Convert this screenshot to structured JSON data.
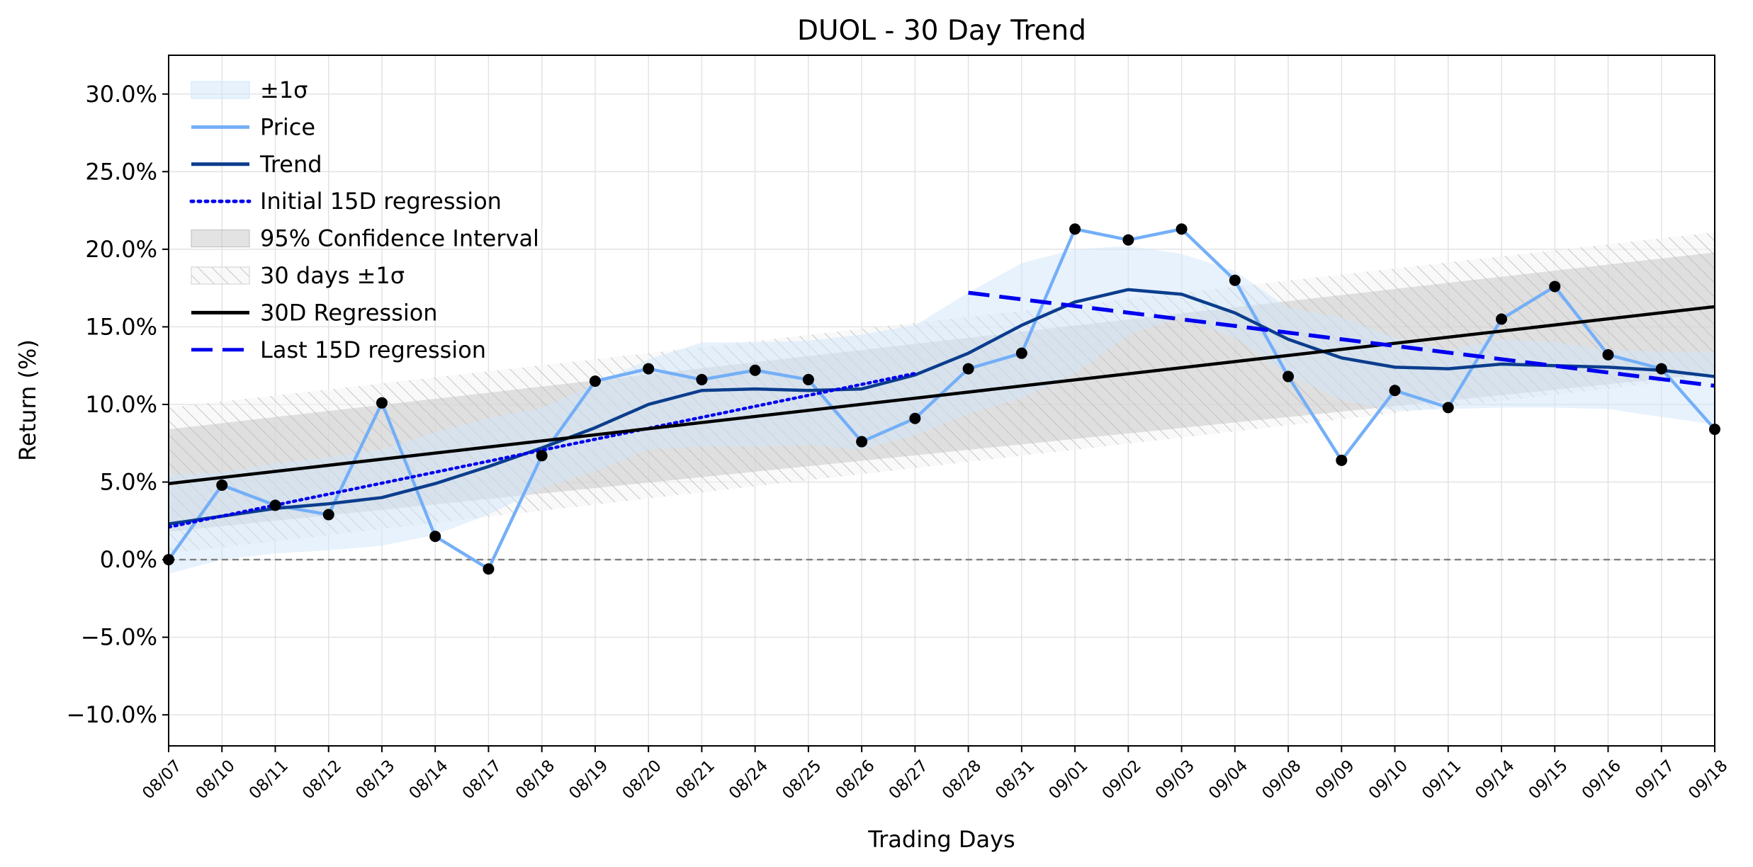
{
  "chart_data": {
    "type": "line",
    "title": "DUOL - 30 Day Trend",
    "xlabel": "Trading Days",
    "ylabel": "Return (%)",
    "ylim": [
      -12.0,
      32.5
    ],
    "yticks": [
      -10,
      -5,
      0,
      5,
      10,
      15,
      20,
      25,
      30
    ],
    "ytick_labels": [
      "−10.0%",
      "−5.0%",
      "0.0%",
      "5.0%",
      "10.0%",
      "15.0%",
      "20.0%",
      "25.0%",
      "30.0%"
    ],
    "categories": [
      "08/07",
      "08/10",
      "08/11",
      "08/12",
      "08/13",
      "08/14",
      "08/17",
      "08/18",
      "08/19",
      "08/20",
      "08/21",
      "08/24",
      "08/25",
      "08/26",
      "08/27",
      "08/28",
      "08/31",
      "09/01",
      "09/02",
      "09/03",
      "09/04",
      "09/08",
      "09/09",
      "09/10",
      "09/11",
      "09/14",
      "09/15",
      "09/16",
      "09/17",
      "09/18"
    ],
    "grid": true,
    "legend_position": "top-left",
    "zero_line": 0,
    "series": [
      {
        "name": "Price",
        "color": "#74aff7",
        "style": "solid",
        "markers": true,
        "values": [
          0.0,
          4.8,
          3.5,
          2.9,
          10.1,
          1.5,
          -0.6,
          6.7,
          11.5,
          12.3,
          11.6,
          12.2,
          11.6,
          7.6,
          9.1,
          12.3,
          13.3,
          21.3,
          20.6,
          21.3,
          18.0,
          11.8,
          6.4,
          10.9,
          9.8,
          15.5,
          17.6,
          13.2,
          12.3,
          8.4
        ]
      },
      {
        "name": "Trend",
        "color": "#0b3d8c",
        "style": "solid",
        "values": [
          2.3,
          2.8,
          3.3,
          3.6,
          4.0,
          4.9,
          6.0,
          7.2,
          8.5,
          10.0,
          10.9,
          11.0,
          10.9,
          11.0,
          11.9,
          13.3,
          15.1,
          16.6,
          17.4,
          17.1,
          15.9,
          14.2,
          13.0,
          12.4,
          12.3,
          12.6,
          12.5,
          12.4,
          12.2,
          11.8
        ]
      },
      {
        "name": "Initial 15D regression",
        "color": "#0000ee",
        "style": "dotted",
        "x_range": [
          0,
          14
        ],
        "y_start": 2.1,
        "y_end": 12.0
      },
      {
        "name": "30D Regression",
        "color": "#000000",
        "style": "solid",
        "x_range": [
          0,
          29
        ],
        "y_start": 4.9,
        "y_end": 16.3
      },
      {
        "name": "Last 15D regression",
        "color": "#0000ee",
        "style": "dashed",
        "x_range": [
          15,
          29
        ],
        "y_start": 17.2,
        "y_end": 11.2
      }
    ],
    "bands": [
      {
        "name": "±1σ",
        "color": "#cfe5fb",
        "lower": [
          -0.9,
          0.0,
          0.4,
          0.6,
          0.9,
          1.6,
          2.9,
          4.6,
          5.7,
          7.1,
          7.3,
          7.3,
          7.4,
          7.1,
          8.0,
          9.4,
          10.4,
          12.0,
          14.5,
          15.6,
          14.3,
          11.9,
          10.3,
          9.6,
          9.7,
          9.8,
          9.8,
          9.7,
          9.2,
          8.7
        ],
        "upper": [
          5.5,
          5.6,
          6.2,
          6.6,
          7.1,
          8.2,
          9.1,
          9.8,
          11.3,
          12.9,
          14.0,
          14.0,
          14.1,
          14.5,
          15.1,
          17.2,
          19.1,
          20.0,
          20.2,
          19.7,
          18.6,
          16.2,
          15.6,
          14.3,
          13.5,
          14.2,
          14.0,
          13.5,
          13.4,
          13.4
        ]
      },
      {
        "name": "95% Confidence Interval",
        "color": "#bdbdbd",
        "lower_start": 1.8,
        "lower_end": 12.0,
        "upper_start": 8.4,
        "upper_end": 19.8
      },
      {
        "name": "30 days ±1σ",
        "color": "#cccccc",
        "hatched": true,
        "lower_start": 0.4,
        "lower_end": 11.8,
        "upper_start": 9.8,
        "upper_end": 21.1
      }
    ],
    "legend": [
      {
        "label": "±1σ",
        "kind": "patch"
      },
      {
        "label": "Price",
        "kind": "line"
      },
      {
        "label": "Trend",
        "kind": "line"
      },
      {
        "label": "Initial 15D regression",
        "kind": "dotted"
      },
      {
        "label": "95% Confidence Interval",
        "kind": "patch"
      },
      {
        "label": "30 days ±1σ",
        "kind": "hatch"
      },
      {
        "label": "30D Regression",
        "kind": "line"
      },
      {
        "label": "Last 15D regression",
        "kind": "dashed"
      }
    ]
  }
}
